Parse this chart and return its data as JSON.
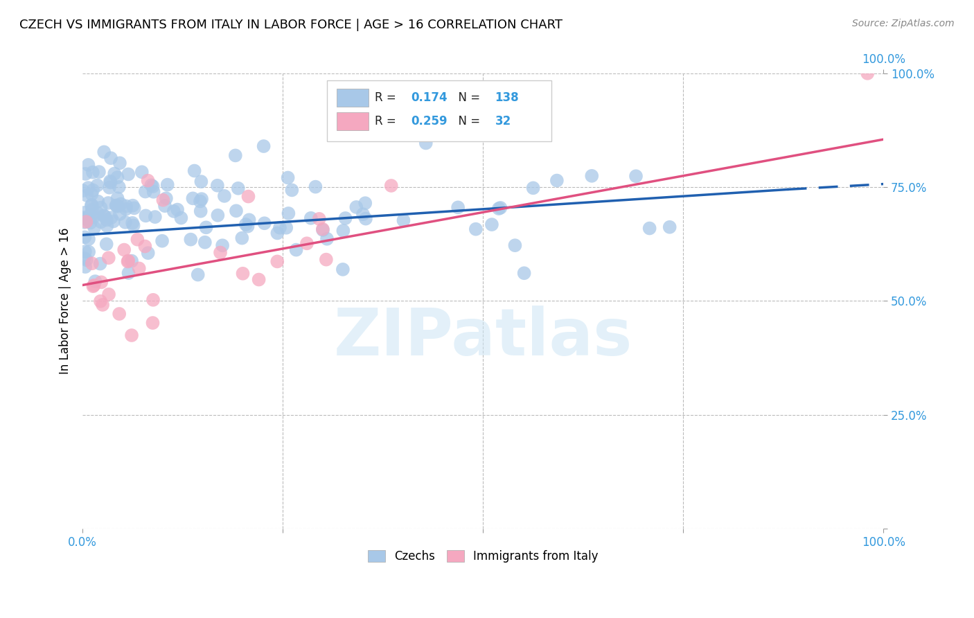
{
  "title": "CZECH VS IMMIGRANTS FROM ITALY IN LABOR FORCE | AGE > 16 CORRELATION CHART",
  "source": "Source: ZipAtlas.com",
  "ylabel": "In Labor Force | Age > 16",
  "watermark": "ZIPatlas",
  "blue_R": 0.174,
  "blue_N": 138,
  "pink_R": 0.259,
  "pink_N": 32,
  "blue_color": "#a8c8e8",
  "pink_color": "#f5a8c0",
  "blue_line_color": "#2060b0",
  "pink_line_color": "#e05080",
  "axis_color": "#3399dd",
  "grid_color": "#bbbbbb",
  "legend_label_blue": "Czechs",
  "legend_label_pink": "Immigrants from Italy",
  "xlim": [
    0.0,
    1.0
  ],
  "ylim": [
    0.0,
    1.0
  ],
  "blue_trend_x0": 0.0,
  "blue_trend_y0": 0.645,
  "blue_trend_x1": 0.88,
  "blue_trend_y1": 0.745,
  "blue_trend_dash_x1": 1.0,
  "blue_trend_dash_y1": 0.757,
  "pink_trend_x0": 0.0,
  "pink_trend_y0": 0.535,
  "pink_trend_x1": 1.0,
  "pink_trend_y1": 0.855,
  "ytick_positions": [
    0.0,
    0.25,
    0.5,
    0.75,
    1.0
  ],
  "ytick_labels_right": [
    "",
    "25.0%",
    "50.0%",
    "75.0%",
    "100.0%"
  ],
  "xtick_positions": [
    0.0,
    0.25,
    0.5,
    0.75,
    1.0
  ],
  "xtick_labels": [
    "0.0%",
    "",
    "",
    "",
    "100.0%"
  ],
  "top_right_label": "100.0%"
}
